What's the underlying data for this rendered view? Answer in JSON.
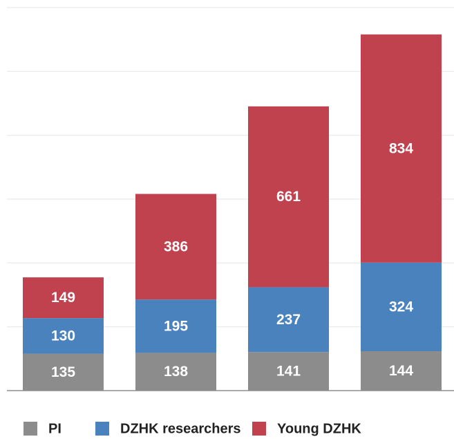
{
  "chart_data": {
    "type": "bar",
    "stacked": true,
    "categories": [
      null,
      null,
      null,
      null
    ],
    "series": [
      {
        "name": "PI",
        "color": "#8c8c8c",
        "values": [
          135,
          138,
          141,
          144
        ]
      },
      {
        "name": "DZHK researchers",
        "color": "#4a82be",
        "values": [
          130,
          195,
          237,
          324
        ]
      },
      {
        "name": "Young DZHK",
        "color": "#c0424e",
        "values": [
          149,
          386,
          661,
          834
        ]
      }
    ],
    "ylim": [
      0,
      1400
    ],
    "yticks": [
      0,
      233,
      467,
      700,
      933,
      1167,
      1400
    ],
    "grid": true,
    "legend": "bottom"
  }
}
